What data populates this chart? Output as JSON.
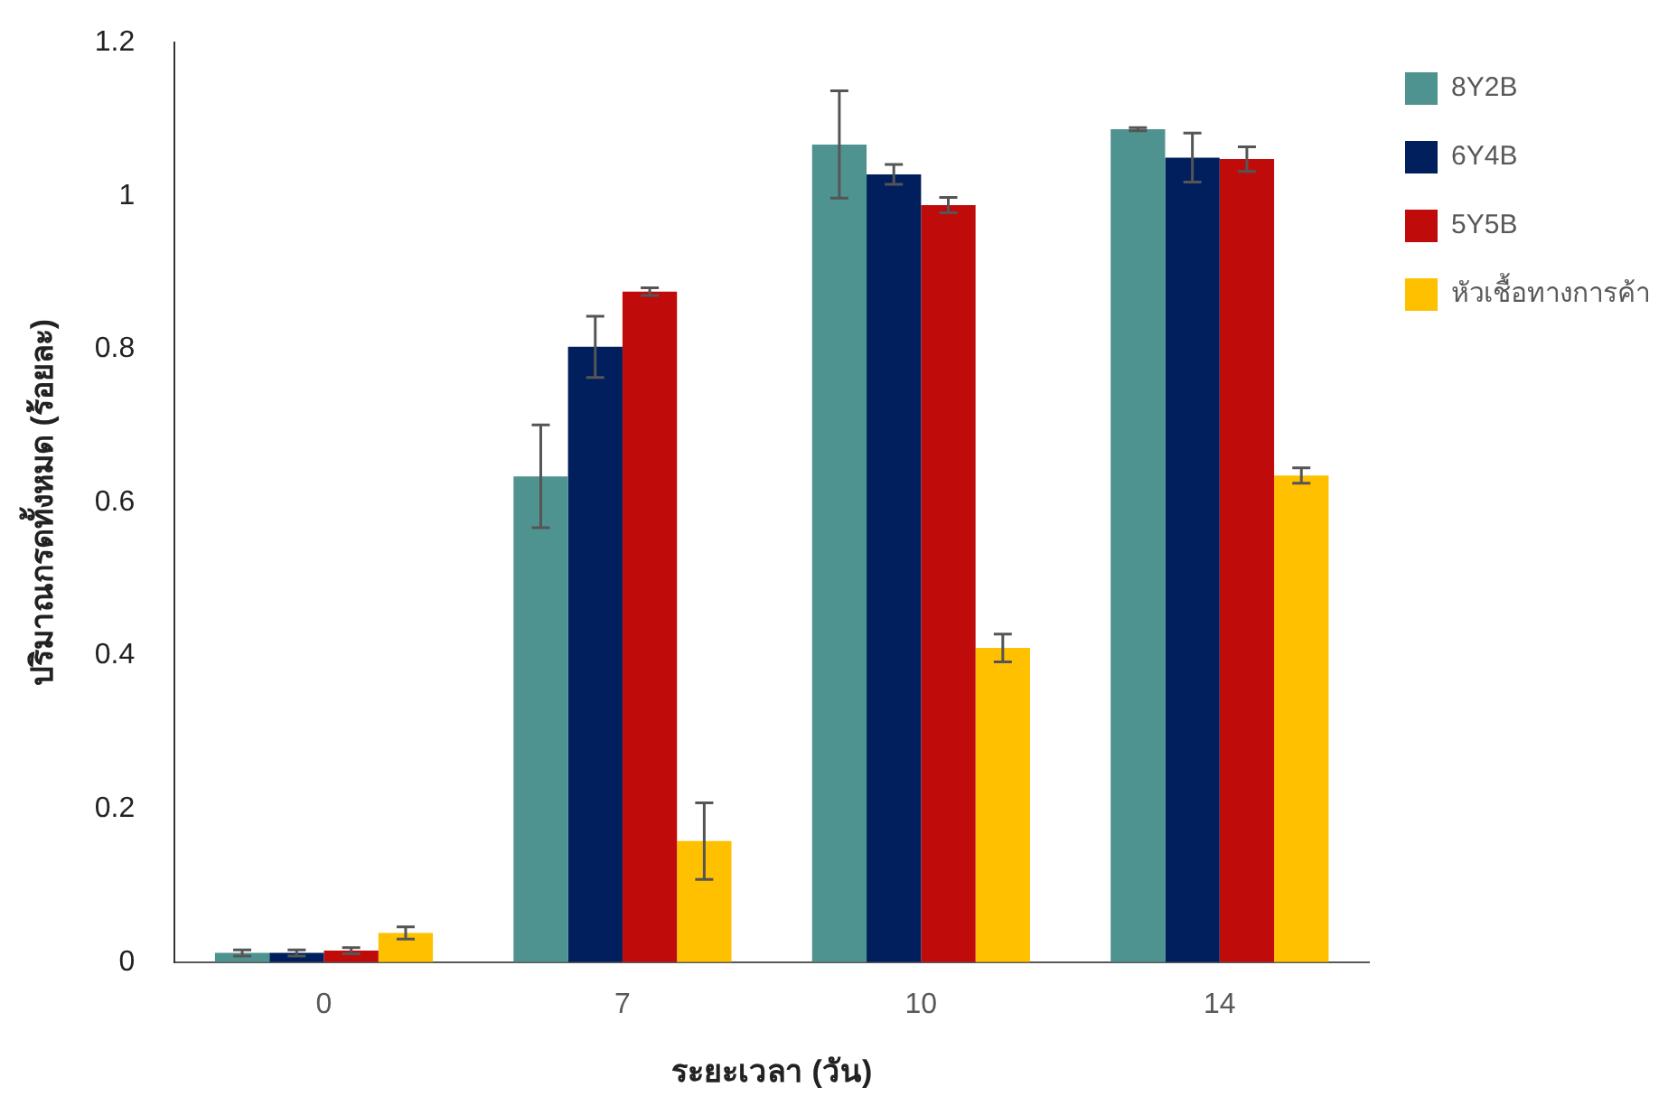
{
  "chart_data": {
    "type": "bar",
    "xlabel": "ระยะเวลา (วัน)",
    "ylabel": "ปริมาณกรดทั้งหมด (ร้อยละ)",
    "categories": [
      "0",
      "7",
      "10",
      "14"
    ],
    "ylim": [
      0,
      1.2
    ],
    "yticks": [
      0,
      0.2,
      0.4,
      0.6,
      0.8,
      1,
      1.2
    ],
    "grid": false,
    "legend": "top right",
    "series": [
      {
        "name": "8Y2B",
        "color": "#4f9390",
        "values": [
          0.012,
          0.634,
          1.067,
          1.087
        ],
        "errors": [
          0.004,
          0.067,
          0.07,
          0.002
        ]
      },
      {
        "name": "6Y4B",
        "color": "#001f5c",
        "values": [
          0.012,
          0.803,
          1.028,
          1.05
        ],
        "errors": [
          0.004,
          0.04,
          0.013,
          0.032
        ]
      },
      {
        "name": "5Y5B",
        "color": "#c00b0b",
        "values": [
          0.015,
          0.875,
          0.988,
          1.048
        ],
        "errors": [
          0.004,
          0.005,
          0.01,
          0.016
        ]
      },
      {
        "name": "หัวเชื้อทางการค้า",
        "color": "#ffc000",
        "values": [
          0.038,
          0.158,
          0.41,
          0.635
        ],
        "errors": [
          0.008,
          0.05,
          0.018,
          0.01
        ]
      }
    ]
  }
}
